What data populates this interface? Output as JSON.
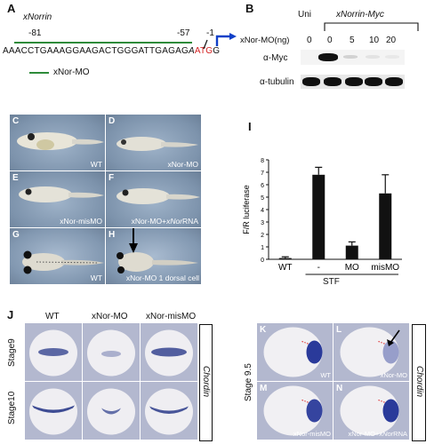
{
  "panelA": {
    "letter": "A",
    "gene": "xNorrin",
    "pos_m81": "-81",
    "pos_m57": "-57",
    "pos_m1": "-1",
    "seq_main": "AAACCTGAAAGGAAGACTGGGATTGAGAG",
    "seq_tail": "A",
    "seq_atg": "ATG",
    "seq_end": "G",
    "mo_label": "xNor-MO",
    "colors": {
      "green": "#2e8b3a",
      "arrow": "#1040c8",
      "red": "#d42020"
    }
  },
  "panelB": {
    "letter": "B",
    "uni": "Uni",
    "group": "xNorrin-Myc",
    "dose_label": "xNor-MO(ng)",
    "doses": [
      "0",
      "0",
      "5",
      "10",
      "20"
    ],
    "row1": "α-Myc",
    "row2": "α-tubulin",
    "myc_intensity": [
      0,
      1.0,
      0.15,
      0.05,
      0.03
    ]
  },
  "embryos": {
    "C": {
      "letter": "C",
      "label": "WT"
    },
    "D": {
      "letter": "D",
      "label": "xNor-MO"
    },
    "E": {
      "letter": "E",
      "label": "xNor-misMO"
    },
    "F": {
      "letter": "F",
      "label_a": "xNor-MO+",
      "label_b": "xNor",
      "label_c": "RNA"
    },
    "G": {
      "letter": "G",
      "label": "WT"
    },
    "H": {
      "letter": "H",
      "label": "xNor-MO 1 dorsal cell"
    }
  },
  "panelI": {
    "letter": "I",
    "group_label": "STF"
  },
  "chart_data": {
    "type": "bar",
    "categories": [
      "WT",
      "-",
      "MO",
      "misMO"
    ],
    "values": [
      0.1,
      6.8,
      1.1,
      5.3
    ],
    "errors": [
      0.1,
      0.6,
      0.3,
      1.5
    ],
    "ylabel": "F/R luciferase",
    "ylim": [
      0,
      8
    ],
    "yticks": [
      0,
      1,
      2,
      3,
      4,
      5,
      6,
      7,
      8
    ]
  },
  "panelJ": {
    "letter": "J",
    "cols": [
      "WT",
      "xNor-MO",
      "xNor-misMO"
    ],
    "rows": [
      "Stage9",
      "Stage10"
    ],
    "gene": "Chordin"
  },
  "panelK": {
    "stage": "Stage 9.5",
    "gene": "Chordin",
    "K": {
      "letter": "K",
      "label": "WT"
    },
    "L": {
      "letter": "L",
      "label": "xNor-MO"
    },
    "M": {
      "letter": "M",
      "label": "xNor-misMO"
    },
    "N": {
      "letter": "N",
      "label_a": "xNor-MO+",
      "label_b": "xNor",
      "label_c": "RNA"
    }
  }
}
